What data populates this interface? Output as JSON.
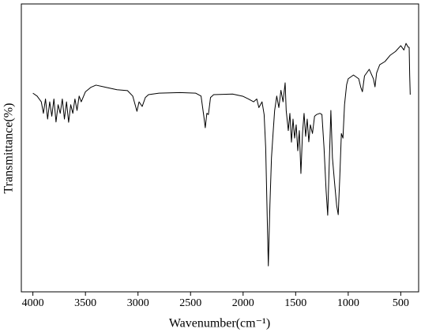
{
  "chart_data": {
    "type": "line",
    "x_label": "Wavenumber(cm⁻¹)",
    "y_label": "Transmittance(%)",
    "xlim": [
      4110,
      330
    ],
    "ylim": [
      0,
      100
    ],
    "xticks": [
      4000,
      3500,
      3000,
      2500,
      2000,
      1500,
      1000,
      500
    ],
    "series": [
      {
        "color": "#000000",
        "x": [
          4000,
          3960,
          3920,
          3900,
          3880,
          3860,
          3840,
          3820,
          3800,
          3780,
          3760,
          3740,
          3720,
          3700,
          3680,
          3660,
          3640,
          3620,
          3600,
          3580,
          3560,
          3540,
          3500,
          3450,
          3400,
          3300,
          3200,
          3100,
          3050,
          3010,
          2990,
          2960,
          2930,
          2900,
          2800,
          2600,
          2450,
          2400,
          2370,
          2360,
          2345,
          2330,
          2310,
          2280,
          2100,
          2000,
          1950,
          1900,
          1870,
          1850,
          1820,
          1800,
          1785,
          1770,
          1760,
          1745,
          1730,
          1715,
          1700,
          1680,
          1660,
          1640,
          1620,
          1600,
          1590,
          1570,
          1555,
          1540,
          1525,
          1510,
          1495,
          1480,
          1465,
          1450,
          1435,
          1420,
          1405,
          1390,
          1375,
          1360,
          1340,
          1320,
          1300,
          1270,
          1250,
          1230,
          1210,
          1195,
          1180,
          1165,
          1150,
          1130,
          1110,
          1095,
          1080,
          1065,
          1050,
          1035,
          1015,
          1000,
          950,
          900,
          880,
          865,
          845,
          800,
          760,
          745,
          730,
          700,
          650,
          600,
          550,
          500,
          470,
          450,
          430,
          420,
          415,
          410
        ],
        "values": [
          69,
          68,
          66,
          62,
          67,
          60,
          66,
          61,
          67,
          59,
          65,
          62,
          67,
          60,
          66,
          58.9,
          65,
          62,
          67,
          63,
          68,
          66,
          69.5,
          71,
          71.8,
          71,
          70.2,
          69.9,
          68,
          62.7,
          66,
          64.4,
          67.5,
          68.5,
          69,
          69.2,
          69,
          68,
          60,
          57,
          62,
          61.6,
          67.5,
          68.5,
          68.7,
          67.9,
          67,
          66,
          67,
          64,
          66,
          61.6,
          50,
          25,
          9,
          30,
          46.6,
          55,
          63,
          68,
          64,
          70,
          66,
          72.6,
          63,
          56,
          62,
          52,
          60,
          53.4,
          58,
          49,
          56,
          41.1,
          55,
          62,
          54,
          60,
          52.1,
          58,
          55,
          61,
          61.6,
          62,
          61.6,
          50,
          35,
          26.6,
          45,
          63,
          46.6,
          38,
          30,
          26.8,
          40,
          55,
          53.4,
          65,
          72,
          74,
          75.3,
          74,
          71,
          69.5,
          75,
          77.3,
          74,
          71.2,
          76,
          78.9,
          80,
          82.2,
          83.5,
          85.5,
          84,
          86.3,
          85,
          84.9,
          75,
          68.5
        ]
      }
    ]
  }
}
